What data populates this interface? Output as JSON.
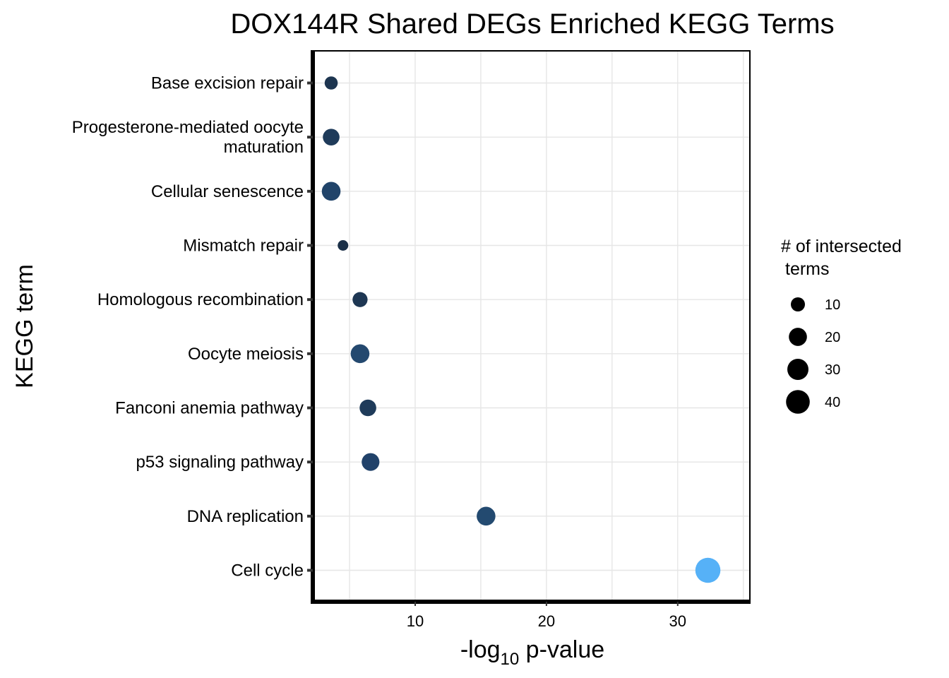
{
  "chart_data": {
    "type": "scatter",
    "title": "DOX144R Shared DEGs Enriched KEGG Terms",
    "xlabel": {
      "prefix": "-log",
      "sub": "10",
      "suffix": " p-value"
    },
    "ylabel": "KEGG term",
    "xlim": [
      2.2,
      35.5
    ],
    "xticks": [
      10,
      20,
      30
    ],
    "grid": true,
    "categories": [
      [
        "Base excision repair"
      ],
      [
        "Progesterone-mediated oocyte",
        "maturation"
      ],
      [
        "Cellular senescence"
      ],
      [
        "Mismatch repair"
      ],
      [
        "Homologous recombination"
      ],
      [
        "Oocyte meiosis"
      ],
      [
        "Fanconi anemia pathway"
      ],
      [
        "p53 signaling pathway"
      ],
      [
        "DNA replication"
      ],
      [
        "Cell cycle"
      ]
    ],
    "points": [
      {
        "term": "Base excision repair",
        "x": 3.6,
        "size": 8,
        "color": "#1d3550"
      },
      {
        "term": "Progesterone-mediated oocyte maturation",
        "x": 3.6,
        "size": 16,
        "color": "#1f3b5a"
      },
      {
        "term": "Cellular senescence",
        "x": 3.6,
        "size": 22,
        "color": "#21446a"
      },
      {
        "term": "Mismatch repair",
        "x": 4.5,
        "size": 4,
        "color": "#1a2f47"
      },
      {
        "term": "Homologous recombination",
        "x": 5.8,
        "size": 12,
        "color": "#1e3753"
      },
      {
        "term": "Oocyte meiosis",
        "x": 5.8,
        "size": 22,
        "color": "#24496f"
      },
      {
        "term": "Fanconi anemia pathway",
        "x": 6.4,
        "size": 16,
        "color": "#1f3b5a"
      },
      {
        "term": "p53 signaling pathway",
        "x": 6.6,
        "size": 19,
        "color": "#21426a"
      },
      {
        "term": "DNA replication",
        "x": 15.4,
        "size": 22,
        "color": "#234a70"
      },
      {
        "term": "Cell cycle",
        "x": 32.3,
        "size": 46,
        "color": "#56b1f7"
      }
    ],
    "legend": {
      "title": [
        "# of intersected",
        "terms"
      ],
      "placement": "right",
      "entries": [
        {
          "label": "10",
          "size": 10
        },
        {
          "label": "20",
          "size": 20
        },
        {
          "label": "30",
          "size": 30
        },
        {
          "label": "40",
          "size": 40
        }
      ]
    }
  }
}
